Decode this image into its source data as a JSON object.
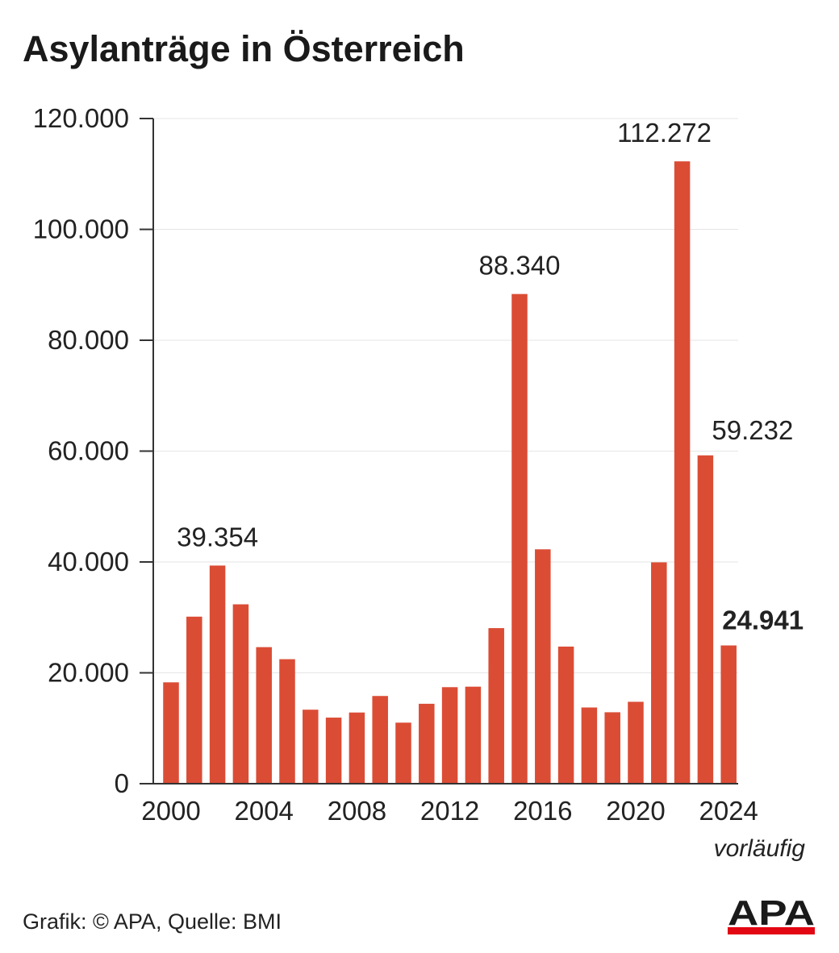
{
  "header": {
    "title": "Asylanträge in Österreich"
  },
  "footer": {
    "credit": "Grafik: © APA, Quelle: BMI"
  },
  "logo": {
    "text": "APA",
    "colors": {
      "ink": "#1a1a1a",
      "accent": "#e30613"
    }
  },
  "colors": {
    "bar": "#db4c35",
    "axis": "#333333",
    "grid": "#e6e6e6",
    "text": "#222222"
  },
  "chart_data": {
    "type": "bar",
    "title": "Asylanträge in Österreich",
    "xlabel": "",
    "ylabel": "",
    "ylim": [
      0,
      120000
    ],
    "grid": true,
    "categories": [
      "2000",
      "2001",
      "2002",
      "2003",
      "2004",
      "2005",
      "2006",
      "2007",
      "2008",
      "2009",
      "2010",
      "2011",
      "2012",
      "2013",
      "2014",
      "2015",
      "2016",
      "2017",
      "2018",
      "2019",
      "2020",
      "2021",
      "2022",
      "2023",
      "2024"
    ],
    "values": [
      18284,
      30135,
      39354,
      32359,
      24634,
      22461,
      13349,
      11921,
      12841,
      15821,
      11012,
      14416,
      17413,
      17503,
      28064,
      88340,
      42285,
      24735,
      13746,
      12886,
      14775,
      39930,
      112272,
      59232,
      24941
    ],
    "x_tick_labels": [
      "2000",
      "2004",
      "2008",
      "2012",
      "2016",
      "2020",
      "2024"
    ],
    "y_tick_labels": [
      "0",
      "20.000",
      "40.000",
      "60.000",
      "80.000",
      "100.000",
      "120.000"
    ],
    "y_ticks": [
      0,
      20000,
      40000,
      60000,
      80000,
      100000,
      120000
    ],
    "data_labels": [
      {
        "category": "2002",
        "text": "39.354",
        "bold": false
      },
      {
        "category": "2015",
        "text": "88.340",
        "bold": false
      },
      {
        "category": "2022",
        "text": "112.272",
        "bold": false
      },
      {
        "category": "2023",
        "text": "59.232",
        "bold": false
      },
      {
        "category": "2024",
        "text": "24.941",
        "bold": true
      }
    ],
    "annotations": [
      {
        "category": "2024",
        "text": "vorläufig"
      }
    ]
  }
}
